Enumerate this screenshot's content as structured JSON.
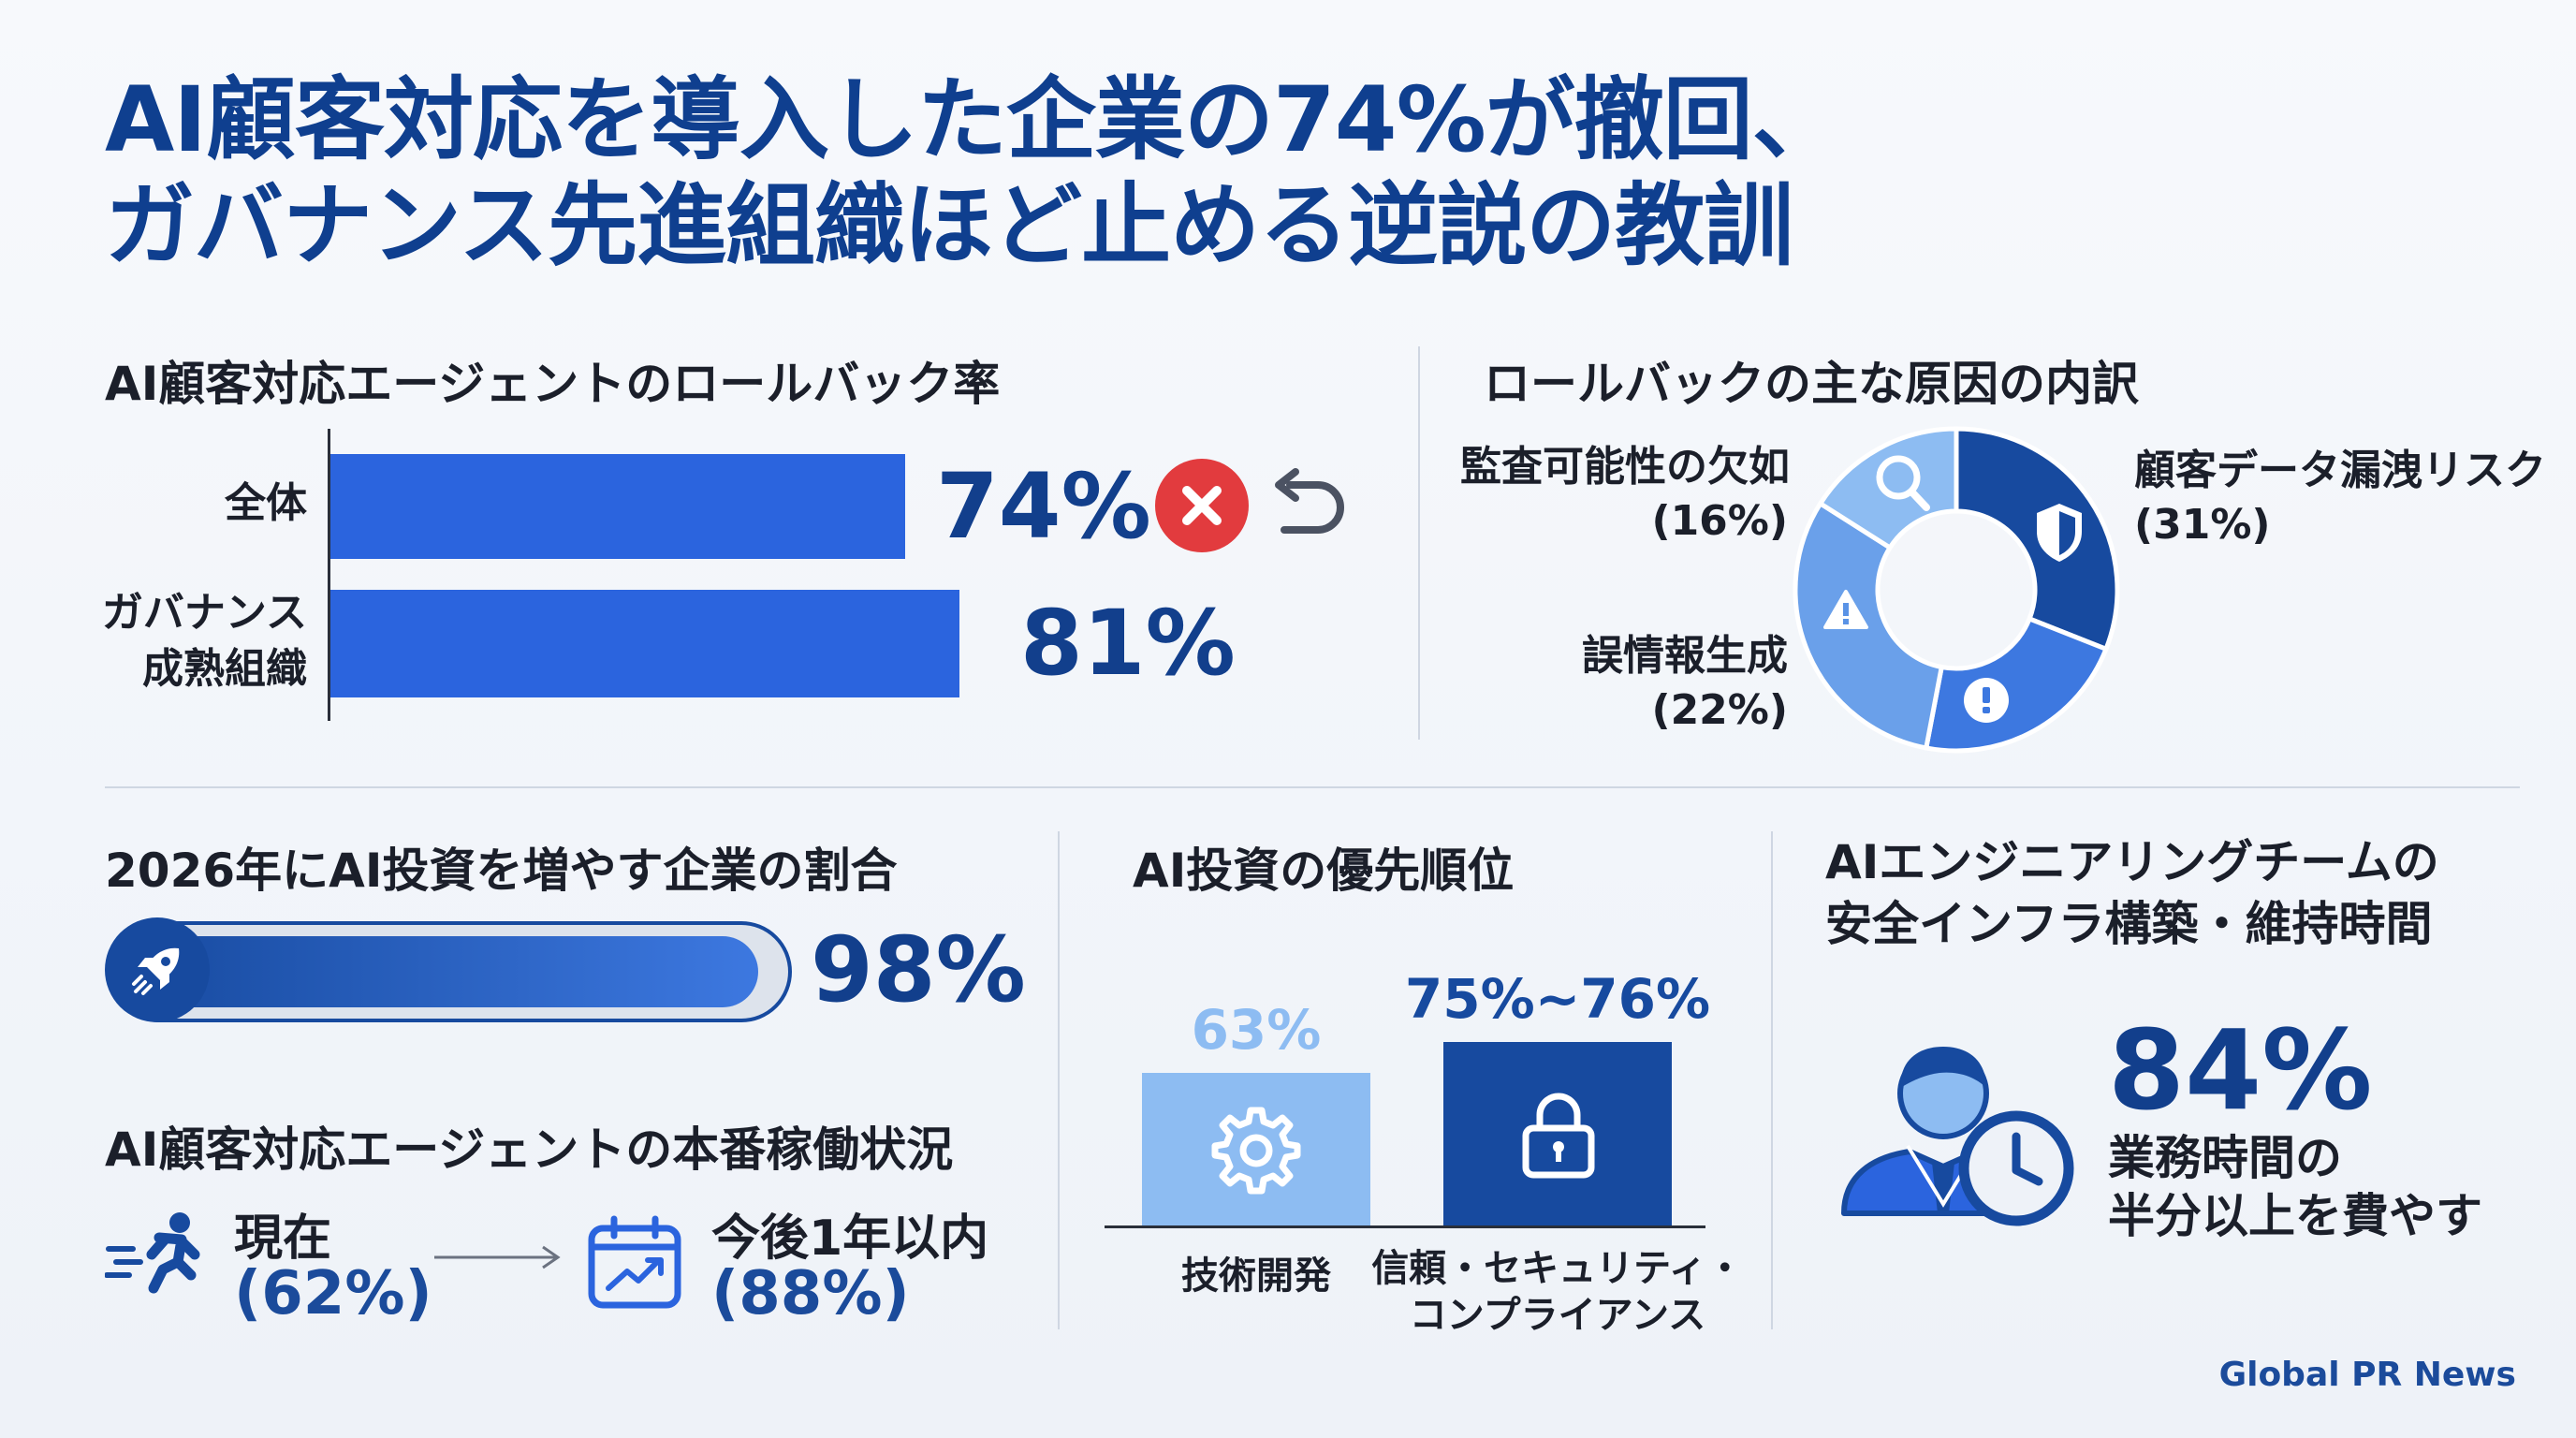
{
  "title": {
    "line1": "AI顧客対応を導入した企業の74%が撤回、",
    "line2": "ガバナンス先進組織ほど止める逆説の教訓"
  },
  "rollback": {
    "title": "AI顧客対応エージェントのロールバック率",
    "chart_data": {
      "type": "bar",
      "orientation": "horizontal",
      "categories": [
        "全体",
        "ガバナンス成熟組織"
      ],
      "values": [
        74,
        81
      ],
      "value_labels": [
        "74%",
        "81%"
      ],
      "xlim": [
        0,
        100
      ],
      "bar_color": "#2b64de"
    },
    "labels": [
      "全体",
      "ガバナンス\n成熟組織"
    ],
    "icons": [
      "x-icon",
      "undo-icon"
    ]
  },
  "causes": {
    "title": "ロールバックの主な原因の内訳",
    "chart_data": {
      "type": "pie",
      "style": "donut",
      "categories": [
        "顧客データ漏洩リスク",
        "誤情報生成",
        "監査可能性の欠如"
      ],
      "values": [
        31,
        22,
        16
      ],
      "colors": [
        "#174a9f",
        "#3d78e0",
        "#5a93e6"
      ],
      "icons": [
        "shield-icon",
        "exclamation-icon",
        "warning-icon",
        "magnifier-icon"
      ]
    },
    "labels": {
      "leak_name": "顧客データ漏洩リスク",
      "leak_pct": "(31%)",
      "misinfo_name": "誤情報生成",
      "misinfo_pct": "(22%)",
      "audit_name": "監査可能性の欠如",
      "audit_pct": "(16%)"
    }
  },
  "invest": {
    "title": "2026年にAI投資を増やす企業の割合",
    "value_label": "98%",
    "chart_data": {
      "type": "bar",
      "categories": [
        "AI投資を増やす企業"
      ],
      "values": [
        98
      ],
      "xlim": [
        0,
        100
      ]
    },
    "icon": "rocket-icon"
  },
  "prod": {
    "title": "AI顧客対応エージェントの本番稼働状況",
    "now_label": "現在",
    "now_pct": "(62%)",
    "future_label": "今後1年以内",
    "future_pct": "(88%)",
    "icons": [
      "running-person-icon",
      "arrow-right-icon",
      "calendar-growth-icon"
    ]
  },
  "priority": {
    "title": "AI投資の優先順位",
    "chart_data": {
      "type": "bar",
      "categories": [
        "技術開発",
        "信頼・セキュリティ・コンプライアンス"
      ],
      "values": [
        63,
        76
      ],
      "value_labels": [
        "63%",
        "75%~76%"
      ],
      "colors": [
        "#8dbcf2",
        "#174a9f"
      ]
    },
    "cat_labels": [
      "技術開発",
      "信頼・セキュリティ・\nコンプライアンス"
    ],
    "icons": [
      "gear-icon",
      "lock-icon"
    ]
  },
  "engineering": {
    "title": "AIエンジニアリングチームの\n安全インフラ構築・維持時間",
    "value": "84%",
    "desc": "業務時間の\n半分以上を費やす",
    "icon": "person-clock-icon"
  },
  "footer": "Global PR News"
}
